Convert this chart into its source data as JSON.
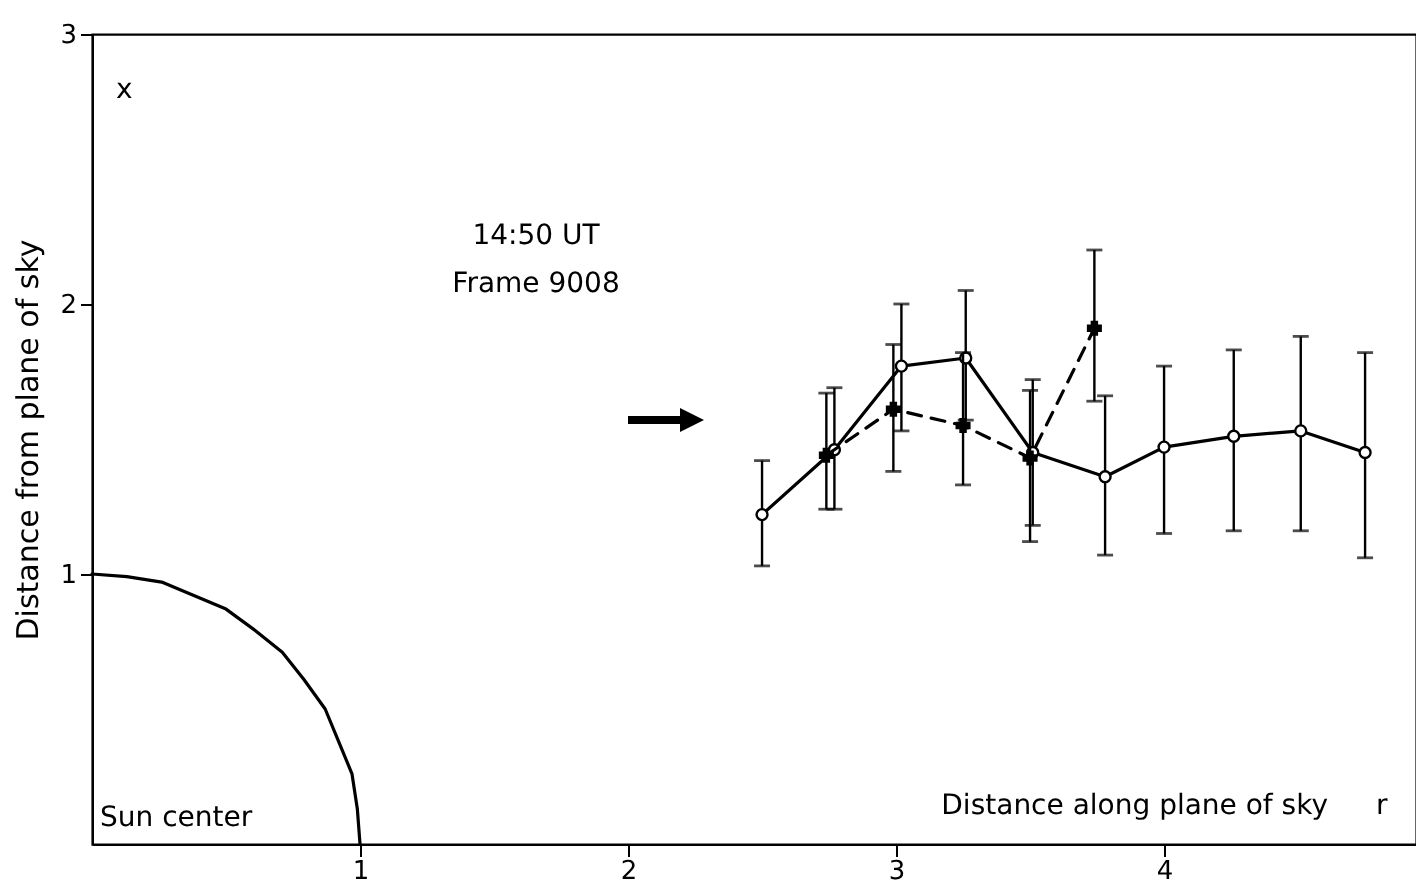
{
  "chart_data": {
    "type": "line",
    "xlabel": "Distance along plane of sky",
    "ylabel": "Distance from plane of sky",
    "annotations": [
      "x",
      "14:50 UT",
      "Frame 9008",
      "Sun center",
      "r"
    ],
    "xlim": [
      0,
      4.94
    ],
    "ylim": [
      0,
      3
    ],
    "xticks": [
      1,
      2,
      3,
      4
    ],
    "yticks": [
      1,
      2,
      3
    ],
    "series": [
      {
        "color": "#000000",
        "marker": "circle",
        "line_style": "solid",
        "x": [
          2.5,
          2.77,
          3.02,
          3.26,
          3.51,
          3.78,
          4.0,
          4.26,
          4.51,
          4.75
        ],
        "values": [
          1.22,
          1.46,
          1.77,
          1.8,
          1.45,
          1.36,
          1.47,
          1.51,
          1.53,
          1.45
        ],
        "errors": [
          [
            1.03,
            1.42
          ],
          [
            1.24,
            1.69
          ],
          [
            1.53,
            2.0
          ],
          [
            1.57,
            2.05
          ],
          [
            1.18,
            1.72
          ],
          [
            1.07,
            1.66
          ],
          [
            1.15,
            1.77
          ],
          [
            1.16,
            1.83
          ],
          [
            1.16,
            1.88
          ],
          [
            1.06,
            1.82
          ]
        ]
      },
      {
        "color": "#000000",
        "marker": "cross",
        "line_style": "dashed",
        "x": [
          2.74,
          2.99,
          3.25,
          3.5,
          3.74
        ],
        "values": [
          1.44,
          1.61,
          1.55,
          1.43,
          1.91
        ],
        "errors": [
          [
            1.24,
            1.67
          ],
          [
            1.38,
            1.85
          ],
          [
            1.33,
            1.82
          ],
          [
            1.12,
            1.68
          ],
          [
            1.64,
            2.2
          ]
        ]
      },
      {
        "color": "#000000",
        "marker": "none",
        "line_style": "solid",
        "x": [
          0,
          0.13,
          0.26,
          0.38,
          0.5,
          0.61,
          0.71,
          0.79,
          0.87,
          0.92,
          0.97,
          0.99,
          1
        ],
        "values": [
          1,
          0.99,
          0.97,
          0.92,
          0.87,
          0.79,
          0.71,
          0.61,
          0.5,
          0.38,
          0.26,
          0.13,
          0
        ]
      }
    ]
  }
}
